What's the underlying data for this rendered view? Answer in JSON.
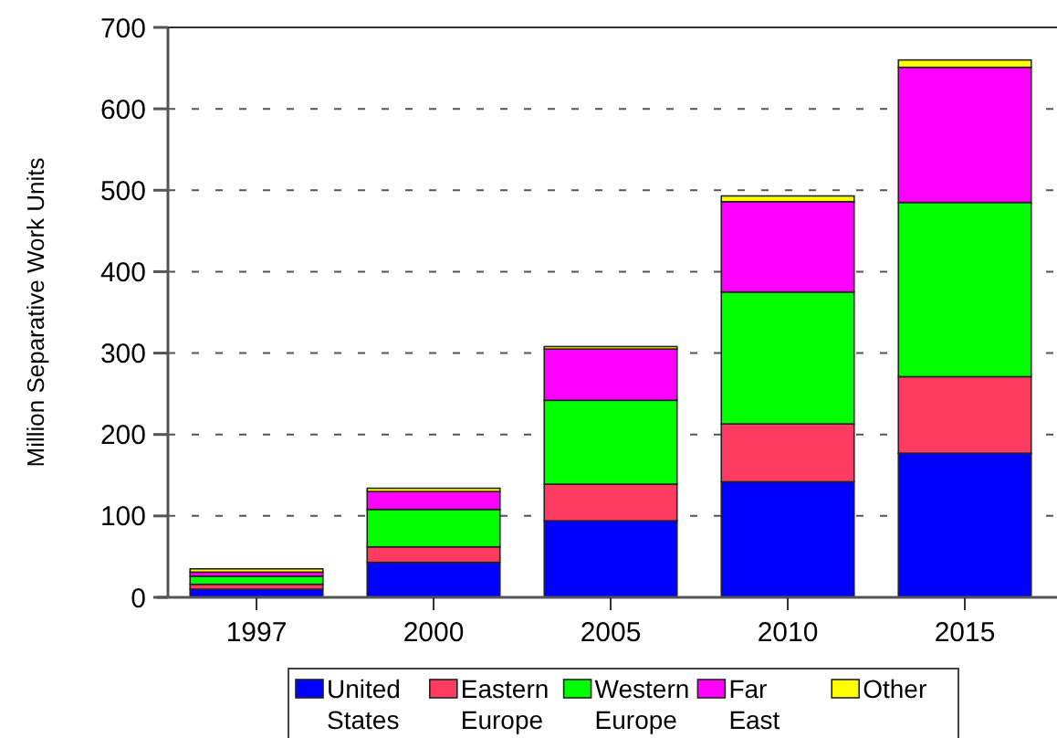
{
  "chart_data": {
    "type": "bar",
    "stacked": true,
    "ylabel": "Million Separative Work Units",
    "categories": [
      "1997",
      "2000",
      "2005",
      "2010",
      "2015"
    ],
    "series": [
      {
        "name": "United States",
        "color": "#0000ff",
        "values": [
          10,
          43,
          94,
          142,
          177
        ]
      },
      {
        "name": "Eastern Europe",
        "color": "#ff3b62",
        "values": [
          6,
          19,
          45,
          71,
          94
        ]
      },
      {
        "name": "Western Europe",
        "color": "#00ff00",
        "values": [
          10,
          46,
          103,
          162,
          214
        ]
      },
      {
        "name": "Far East",
        "color": "#ff00ff",
        "values": [
          5,
          22,
          63,
          111,
          166
        ]
      },
      {
        "name": "Other",
        "color": "#ffff00",
        "values": [
          4,
          4,
          3,
          7,
          9
        ]
      }
    ],
    "ylim": [
      0,
      700
    ],
    "yticks": [
      0,
      100,
      200,
      300,
      400,
      500,
      600,
      700
    ],
    "grid": "y",
    "legend": "bottom"
  }
}
